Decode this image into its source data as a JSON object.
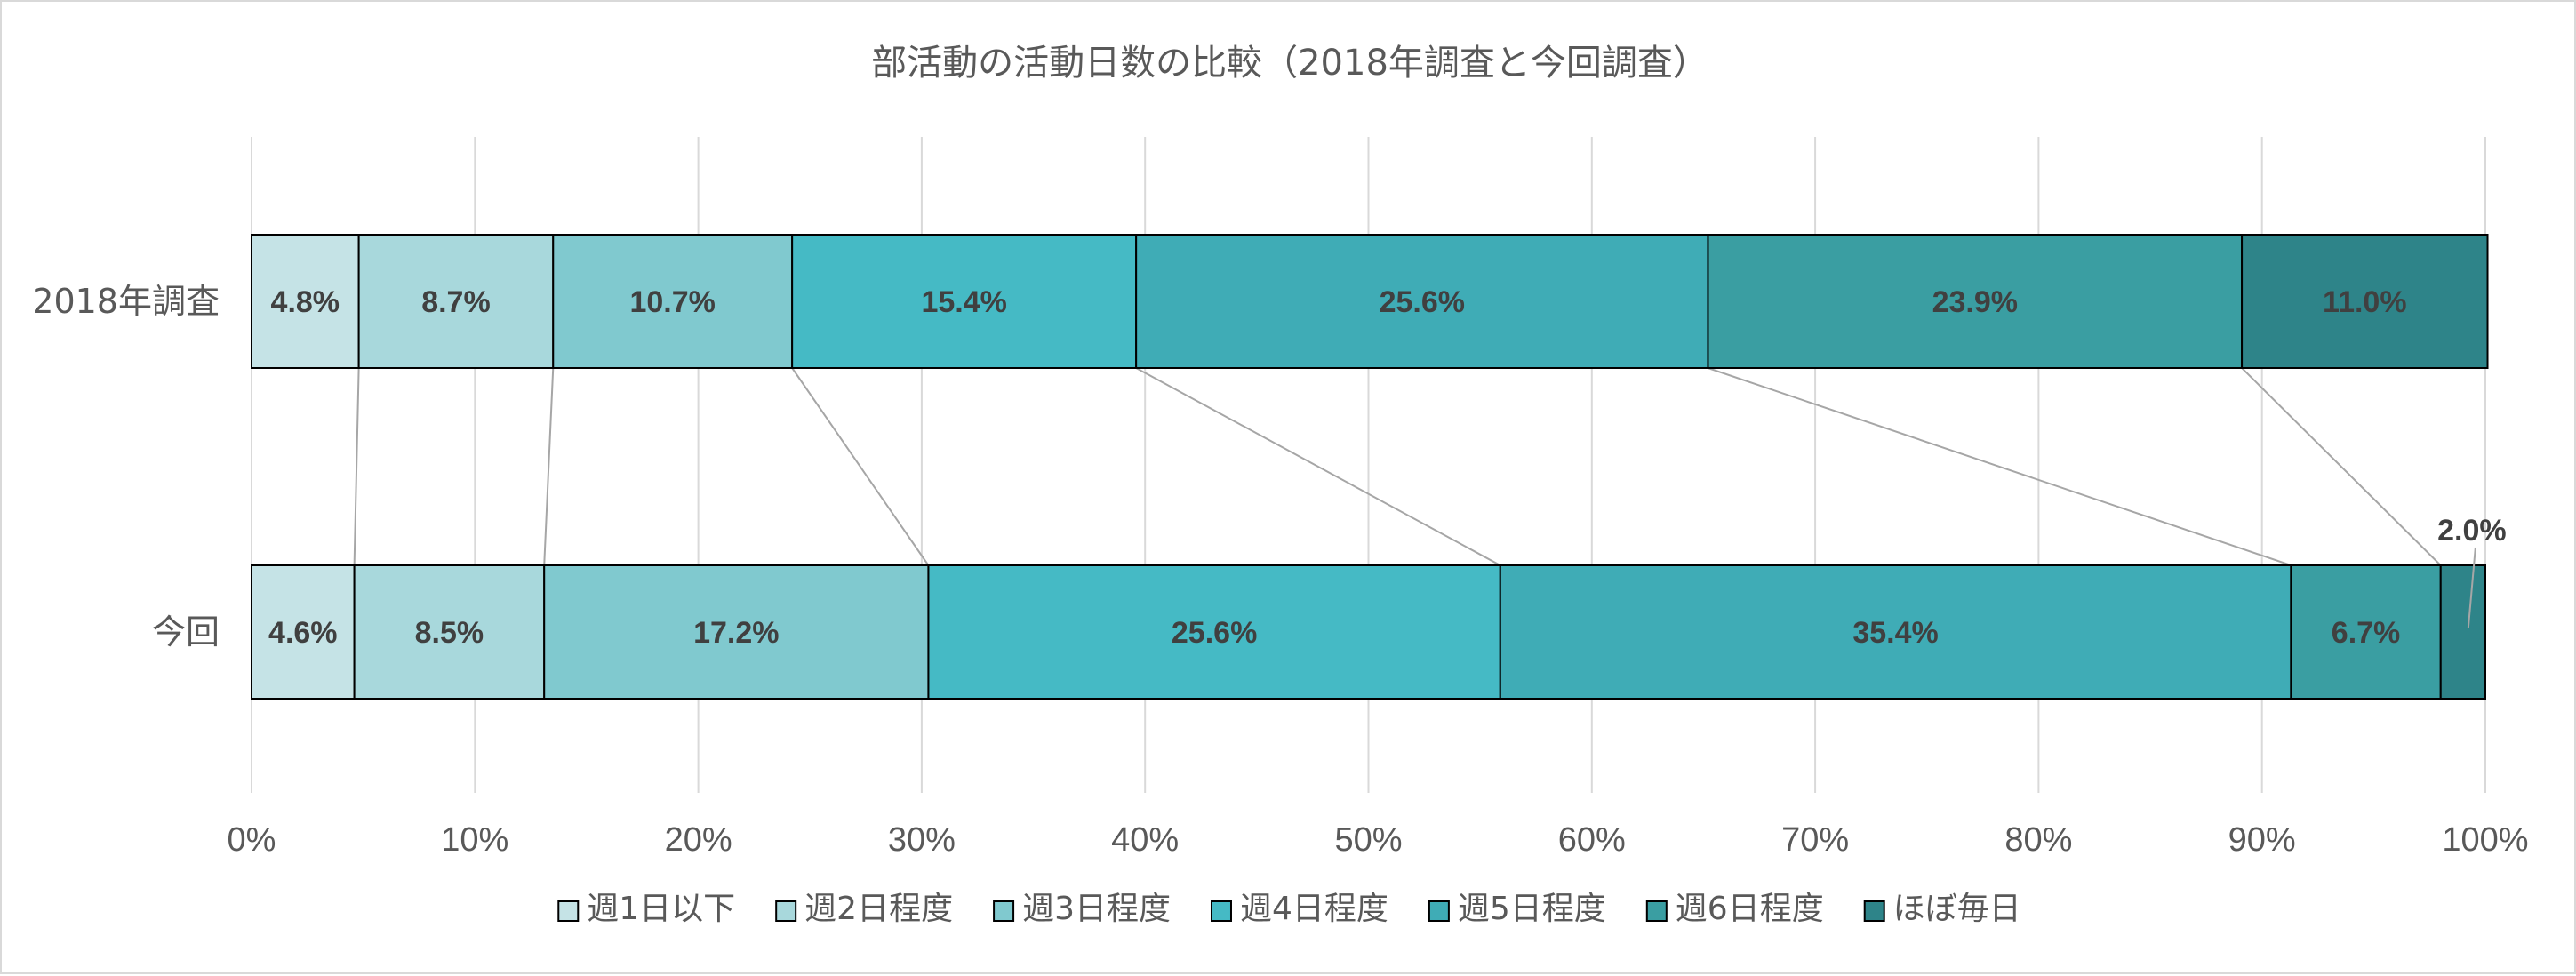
{
  "chart_data": {
    "type": "bar",
    "orientation": "horizontal",
    "stacked": "100%",
    "title": "部活動の活動日数の比較（2018年調査と今回調査）",
    "categories": [
      "2018年調査",
      "今回"
    ],
    "series": [
      {
        "name": "週1日以下",
        "color": "#c5e3e6",
        "values": [
          4.8,
          4.6
        ],
        "labels": [
          "4.8%",
          "4.6%"
        ]
      },
      {
        "name": "週2日程度",
        "color": "#a8d8dc",
        "values": [
          8.7,
          8.5
        ],
        "labels": [
          "8.7%",
          "8.5%"
        ]
      },
      {
        "name": "週3日程度",
        "color": "#80c9cf",
        "values": [
          10.7,
          17.2
        ],
        "labels": [
          "10.7%",
          "17.2%"
        ]
      },
      {
        "name": "週4日程度",
        "color": "#45bac5",
        "values": [
          15.4,
          25.6
        ],
        "labels": [
          "15.4%",
          "25.6%"
        ]
      },
      {
        "name": "週5日程度",
        "color": "#3facb6",
        "values": [
          25.6,
          35.4
        ],
        "labels": [
          "25.6%",
          "35.4%"
        ]
      },
      {
        "name": "週6日程度",
        "color": "#3a9ea2",
        "values": [
          23.9,
          6.7
        ],
        "labels": [
          "23.9%",
          "6.7%"
        ]
      },
      {
        "name": "ほぼ毎日",
        "color": "#2e8489",
        "values": [
          11.0,
          2.0
        ],
        "labels": [
          "11.0%",
          "2.0%"
        ]
      }
    ],
    "xlim": [
      0,
      100
    ],
    "xticks": [
      "0%",
      "10%",
      "20%",
      "30%",
      "40%",
      "50%",
      "60%",
      "70%",
      "80%",
      "90%",
      "100%"
    ],
    "grid": true,
    "series_lines": true,
    "legend_position": "bottom"
  }
}
